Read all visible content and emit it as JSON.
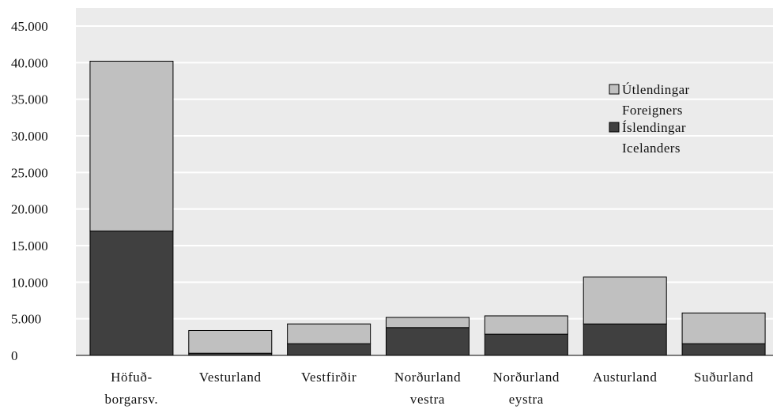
{
  "chart_data": {
    "type": "bar",
    "stacked": true,
    "categories": [
      [
        "Höfuð-",
        "borgarsv."
      ],
      [
        "Vesturland"
      ],
      [
        "Vestfirðir"
      ],
      [
        "Norðurland",
        "vestra"
      ],
      [
        "Norðurland",
        "eystra"
      ],
      [
        "Austurland"
      ],
      [
        "Suðurland"
      ]
    ],
    "series": [
      {
        "key": "icelanders",
        "name_lines": [
          "Íslendingar",
          "Icelanders"
        ],
        "color": "#404040",
        "values": [
          17000,
          300,
          1600,
          3800,
          2900,
          4300,
          1600
        ]
      },
      {
        "key": "foreigners",
        "name_lines": [
          "Útlendingar",
          "Foreigners"
        ],
        "color": "#c0c0c0",
        "values": [
          23200,
          3100,
          2700,
          1400,
          2500,
          6400,
          4200
        ]
      }
    ],
    "yticks": [
      "0",
      "5.000",
      "10.000",
      "15.000",
      "20.000",
      "25.000",
      "30.000",
      "35.000",
      "40.000",
      "45.000"
    ],
    "ylim": [
      0,
      45000
    ],
    "grid": true,
    "plot_background": "#ebebeb",
    "gridline_color": "#ffffff",
    "legend_position": "top-right"
  }
}
